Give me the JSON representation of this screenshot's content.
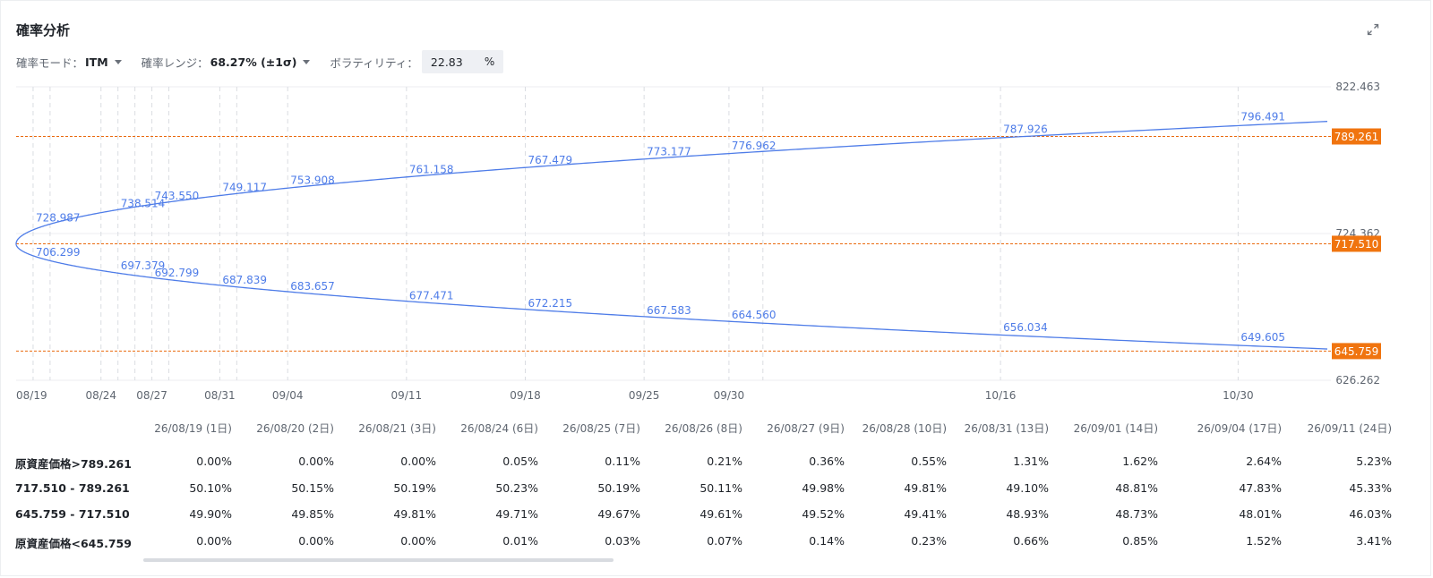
{
  "header": {
    "title": "確率分析",
    "mode_label": "確率モード：",
    "mode_value": "ITM",
    "range_label": "確率レンジ：",
    "range_value": "68.27% (±1σ)",
    "volatility_label": "ボラティリティ：",
    "volatility_value": "22.83",
    "volatility_unit": "%"
  },
  "colors": {
    "curve": "#4e7ce8",
    "level_line": "#ea6a0f",
    "level_tag": "#f0740f",
    "grid": "#dadde2",
    "text_muted": "#5f6670"
  },
  "chart_data": {
    "type": "line",
    "ylim": [
      626.262,
      822.463
    ],
    "y_tick_labels": [
      "822.463",
      "724.362",
      "626.262"
    ],
    "origin_price": 717.51,
    "x_labels": [
      "08/19",
      "08/24",
      "08/27",
      "08/31",
      "09/04",
      "09/11",
      "09/18",
      "09/25",
      "09/30",
      "10/16",
      "10/30"
    ],
    "levels": [
      {
        "value": 789.261,
        "label": "789.261"
      },
      {
        "value": 717.51,
        "label": "717.510"
      },
      {
        "value": 645.759,
        "label": "645.759"
      }
    ],
    "upper_points": [
      {
        "x": "08/20",
        "value": 728.987,
        "label": "728.987"
      },
      {
        "x": "08/25",
        "value": 738.514,
        "label": "738.514"
      },
      {
        "x": "08/27",
        "value": 743.55,
        "label": "743.550"
      },
      {
        "x": "08/31",
        "value": 749.117,
        "label": "749.117"
      },
      {
        "x": "09/04",
        "value": 753.908,
        "label": "753.908"
      },
      {
        "x": "09/11",
        "value": 761.158,
        "label": "761.158"
      },
      {
        "x": "09/18",
        "value": 767.479,
        "label": "767.479"
      },
      {
        "x": "09/25",
        "value": 773.177,
        "label": "773.177"
      },
      {
        "x": "09/30",
        "value": 776.962,
        "label": "776.962"
      },
      {
        "x": "10/16",
        "value": 787.926,
        "label": "787.926"
      },
      {
        "x": "10/30",
        "value": 796.491,
        "label": "796.491"
      }
    ],
    "lower_points": [
      {
        "x": "08/20",
        "value": 706.299,
        "label": "706.299"
      },
      {
        "x": "08/25",
        "value": 697.379,
        "label": "697.379"
      },
      {
        "x": "08/27",
        "value": 692.799,
        "label": "692.799"
      },
      {
        "x": "08/31",
        "value": 687.839,
        "label": "687.839"
      },
      {
        "x": "09/04",
        "value": 683.657,
        "label": "683.657"
      },
      {
        "x": "09/11",
        "value": 677.471,
        "label": "677.471"
      },
      {
        "x": "09/18",
        "value": 672.215,
        "label": "672.215"
      },
      {
        "x": "09/25",
        "value": 667.583,
        "label": "667.583"
      },
      {
        "x": "09/30",
        "value": 664.56,
        "label": "664.560"
      },
      {
        "x": "10/16",
        "value": 656.034,
        "label": "656.034"
      },
      {
        "x": "10/30",
        "value": 649.605,
        "label": "649.605"
      }
    ]
  },
  "table": {
    "columns": [
      "26/08/19 (1日)",
      "26/08/20 (2日)",
      "26/08/21 (3日)",
      "26/08/24 (6日)",
      "26/08/25 (7日)",
      "26/08/26 (8日)",
      "26/08/27 (9日)",
      "26/08/28 (10日)",
      "26/08/31 (13日)",
      "26/09/01 (14日)",
      "26/09/04 (17日)",
      "26/09/11 (24日)"
    ],
    "rows": [
      {
        "label": "原資産価格>789.261",
        "values": [
          "0.00%",
          "0.00%",
          "0.00%",
          "0.05%",
          "0.11%",
          "0.21%",
          "0.36%",
          "0.55%",
          "1.31%",
          "1.62%",
          "2.64%",
          "5.23%"
        ]
      },
      {
        "label": "717.510 - 789.261",
        "values": [
          "50.10%",
          "50.15%",
          "50.19%",
          "50.23%",
          "50.19%",
          "50.11%",
          "49.98%",
          "49.81%",
          "49.10%",
          "48.81%",
          "47.83%",
          "45.33%"
        ]
      },
      {
        "label": "645.759 - 717.510",
        "values": [
          "49.90%",
          "49.85%",
          "49.81%",
          "49.71%",
          "49.67%",
          "49.61%",
          "49.52%",
          "49.41%",
          "48.93%",
          "48.73%",
          "48.01%",
          "46.03%"
        ]
      },
      {
        "label": "原資産価格<645.759",
        "values": [
          "0.00%",
          "0.00%",
          "0.00%",
          "0.01%",
          "0.03%",
          "0.07%",
          "0.14%",
          "0.23%",
          "0.66%",
          "0.85%",
          "1.52%",
          "3.41%"
        ]
      }
    ]
  }
}
